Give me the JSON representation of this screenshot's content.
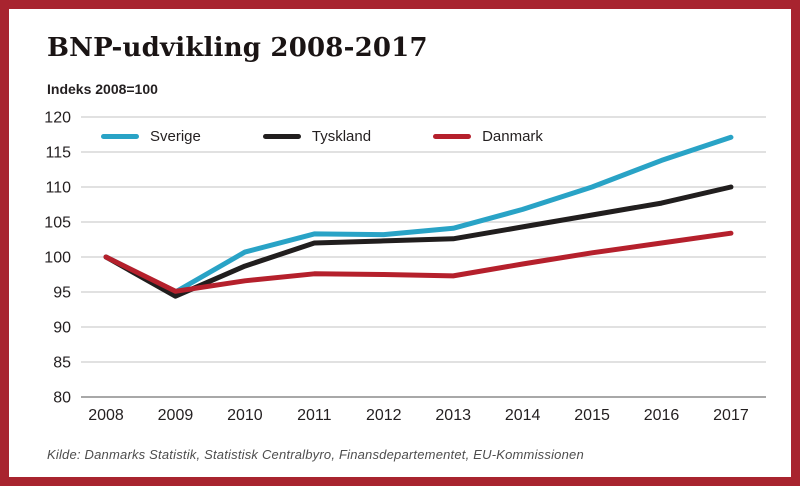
{
  "frame": {
    "border_color": "#a8242f",
    "background_color": "#ffffff"
  },
  "header": {
    "title": "BNP-udvikling 2008-2017",
    "subtitle": "Indeks 2008=100"
  },
  "footer": {
    "source": "Kilde: Danmarks Statistik, Statistisk Centralbyro, Finansdepartementet, EU-Kommissionen"
  },
  "chart_data": {
    "type": "line",
    "title": "BNP-udvikling 2008-2017",
    "ylabel_note": "Indeks 2008=100",
    "x": [
      2008,
      2009,
      2010,
      2011,
      2012,
      2013,
      2014,
      2015,
      2016,
      2017
    ],
    "series": [
      {
        "name": "Sverige",
        "color": "#29a3c6",
        "values": [
          100,
          95.0,
          100.7,
          103.3,
          103.2,
          104.1,
          106.8,
          110.0,
          113.8,
          117.1
        ]
      },
      {
        "name": "Tyskland",
        "color": "#211e1e",
        "values": [
          100,
          94.4,
          98.7,
          102.0,
          102.3,
          102.6,
          104.3,
          106.0,
          107.7,
          110.0
        ]
      },
      {
        "name": "Danmark",
        "color": "#b5202c",
        "values": [
          100,
          95.1,
          96.6,
          97.6,
          97.5,
          97.3,
          99.0,
          100.6,
          102.0,
          103.4
        ]
      }
    ],
    "ylim": [
      80,
      120
    ],
    "ytick_step": 5,
    "yticks": [
      80,
      85,
      90,
      95,
      100,
      105,
      110,
      115,
      120
    ],
    "grid": true,
    "legend_position": "top-left-inside",
    "styles": {
      "gridline_color": "#cfcfcf",
      "baseline_color": "#8c8c8c",
      "tick_label_color": "#231f20",
      "line_width": 5
    }
  }
}
